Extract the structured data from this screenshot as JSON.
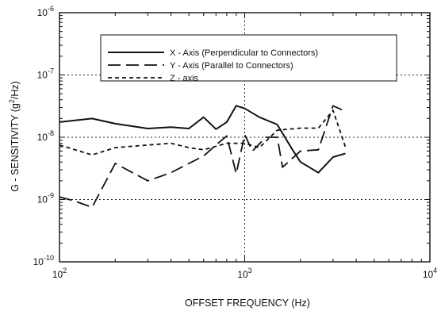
{
  "chart_data": {
    "type": "line",
    "xlabel": "OFFSET FREQUENCY (Hz)",
    "ylabel_prefix": "G - SENSITIVITY (g",
    "ylabel_sup": "2",
    "ylabel_suffix": "/Hz)",
    "x_scale": "log",
    "y_scale": "log",
    "xlim": [
      100,
      10000
    ],
    "ylim": [
      1e-10,
      1e-06
    ],
    "grid": "dotted, major decades",
    "legend_position": "top-center",
    "x_ticks": [
      {
        "value": 100,
        "base": "10",
        "exp": "2"
      },
      {
        "value": 1000,
        "base": "10",
        "exp": "3"
      },
      {
        "value": 10000,
        "base": "10",
        "exp": "4"
      }
    ],
    "y_ticks": [
      {
        "value": 1e-10,
        "base": "10",
        "exp": "-10"
      },
      {
        "value": 1e-09,
        "base": "10",
        "exp": "-9"
      },
      {
        "value": 1e-08,
        "base": "10",
        "exp": "-8"
      },
      {
        "value": 1e-07,
        "base": "10",
        "exp": "-7"
      },
      {
        "value": 1e-06,
        "base": "10",
        "exp": "-6"
      }
    ],
    "series": [
      {
        "name": "X - Axis (Perpendicular to Connectors)",
        "style": "solid",
        "points": [
          [
            100,
            1.75e-08
          ],
          [
            150,
            2e-08
          ],
          [
            200,
            1.65e-08
          ],
          [
            300,
            1.38e-08
          ],
          [
            400,
            1.45e-08
          ],
          [
            500,
            1.38e-08
          ],
          [
            600,
            2.1e-08
          ],
          [
            700,
            1.35e-08
          ],
          [
            800,
            1.75e-08
          ],
          [
            900,
            3.2e-08
          ],
          [
            1000,
            2.9e-08
          ],
          [
            1200,
            2.1e-08
          ],
          [
            1500,
            1.6e-08
          ],
          [
            1800,
            6.5e-09
          ],
          [
            2000,
            4e-09
          ],
          [
            2500,
            2.7e-09
          ],
          [
            3000,
            4.8e-09
          ],
          [
            3500,
            5.5e-09
          ]
        ]
      },
      {
        "name": "Y - Axis (Parallel to Connectors)",
        "style": "long-dash",
        "points": [
          [
            100,
            1.1e-09
          ],
          [
            120,
            9.5e-10
          ],
          [
            150,
            7.5e-10
          ],
          [
            200,
            3.8e-09
          ],
          [
            300,
            2e-09
          ],
          [
            400,
            2.7e-09
          ],
          [
            500,
            3.8e-09
          ],
          [
            600,
            5e-09
          ],
          [
            700,
            7.5e-09
          ],
          [
            800,
            1.05e-08
          ],
          [
            900,
            2.6e-09
          ],
          [
            1000,
            1.1e-08
          ],
          [
            1100,
            6e-09
          ],
          [
            1300,
            1e-08
          ],
          [
            1500,
            1e-08
          ],
          [
            1600,
            3.3e-09
          ],
          [
            2000,
            6e-09
          ],
          [
            2500,
            6.3e-09
          ],
          [
            3000,
            3.2e-08
          ],
          [
            3500,
            2.6e-08
          ]
        ]
      },
      {
        "name": "Z - axis",
        "style": "short-dash",
        "points": [
          [
            100,
            7.5e-09
          ],
          [
            150,
            5.2e-09
          ],
          [
            200,
            6.8e-09
          ],
          [
            300,
            7.5e-09
          ],
          [
            400,
            8e-09
          ],
          [
            500,
            6.8e-09
          ],
          [
            600,
            6.3e-09
          ],
          [
            800,
            8e-09
          ],
          [
            1000,
            8e-09
          ],
          [
            1200,
            6.8e-09
          ],
          [
            1500,
            1.3e-08
          ],
          [
            2000,
            1.4e-08
          ],
          [
            2500,
            1.4e-08
          ],
          [
            3000,
            2.7e-08
          ],
          [
            3500,
            7e-09
          ]
        ]
      }
    ]
  }
}
